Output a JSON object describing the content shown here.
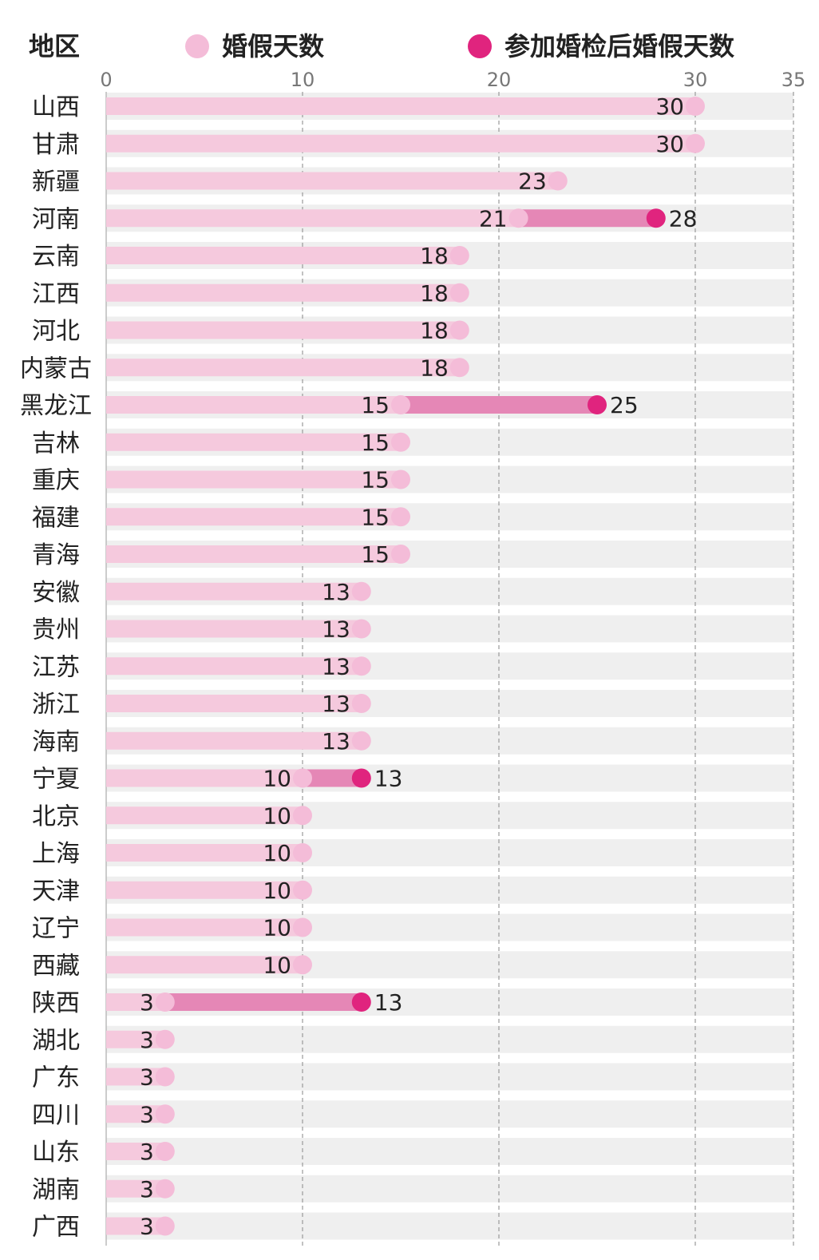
{
  "header": {
    "region_label": "地区"
  },
  "legend": {
    "items": [
      {
        "label": "婚假天数",
        "color": "#f4bcd8"
      },
      {
        "label": "参加婚检后婚假天数",
        "color": "#e0247e"
      }
    ]
  },
  "colors": {
    "row_background": "#efefef",
    "base_bar": "#f5c9dd",
    "extra_bar": "#e587b6",
    "base_dot": "#f4bcd8",
    "exam_dot": "#e0247e",
    "grid": "#999999",
    "tick_text": "#777777"
  },
  "chart_data": {
    "type": "bar",
    "orientation": "horizontal",
    "xlim": [
      0,
      35
    ],
    "x_ticks": [
      0,
      10,
      20,
      30,
      35
    ],
    "grid": true,
    "legend_position": "top",
    "categories": [
      "山西",
      "甘肃",
      "新疆",
      "河南",
      "云南",
      "江西",
      "河北",
      "内蒙古",
      "黑龙江",
      "吉林",
      "重庆",
      "福建",
      "青海",
      "安徽",
      "贵州",
      "江苏",
      "浙江",
      "海南",
      "宁夏",
      "北京",
      "上海",
      "天津",
      "辽宁",
      "西藏",
      "陕西",
      "湖北",
      "广东",
      "四川",
      "山东",
      "湖南",
      "广西"
    ],
    "series": [
      {
        "name": "婚假天数",
        "values": [
          30,
          30,
          23,
          21,
          18,
          18,
          18,
          18,
          15,
          15,
          15,
          15,
          15,
          13,
          13,
          13,
          13,
          13,
          10,
          10,
          10,
          10,
          10,
          10,
          3,
          3,
          3,
          3,
          3,
          3,
          3
        ]
      },
      {
        "name": "参加婚检后婚假天数",
        "values": [
          null,
          null,
          null,
          28,
          null,
          null,
          null,
          null,
          25,
          null,
          null,
          null,
          null,
          null,
          null,
          null,
          null,
          null,
          13,
          null,
          null,
          null,
          null,
          null,
          13,
          null,
          null,
          null,
          null,
          null,
          null
        ]
      }
    ]
  }
}
